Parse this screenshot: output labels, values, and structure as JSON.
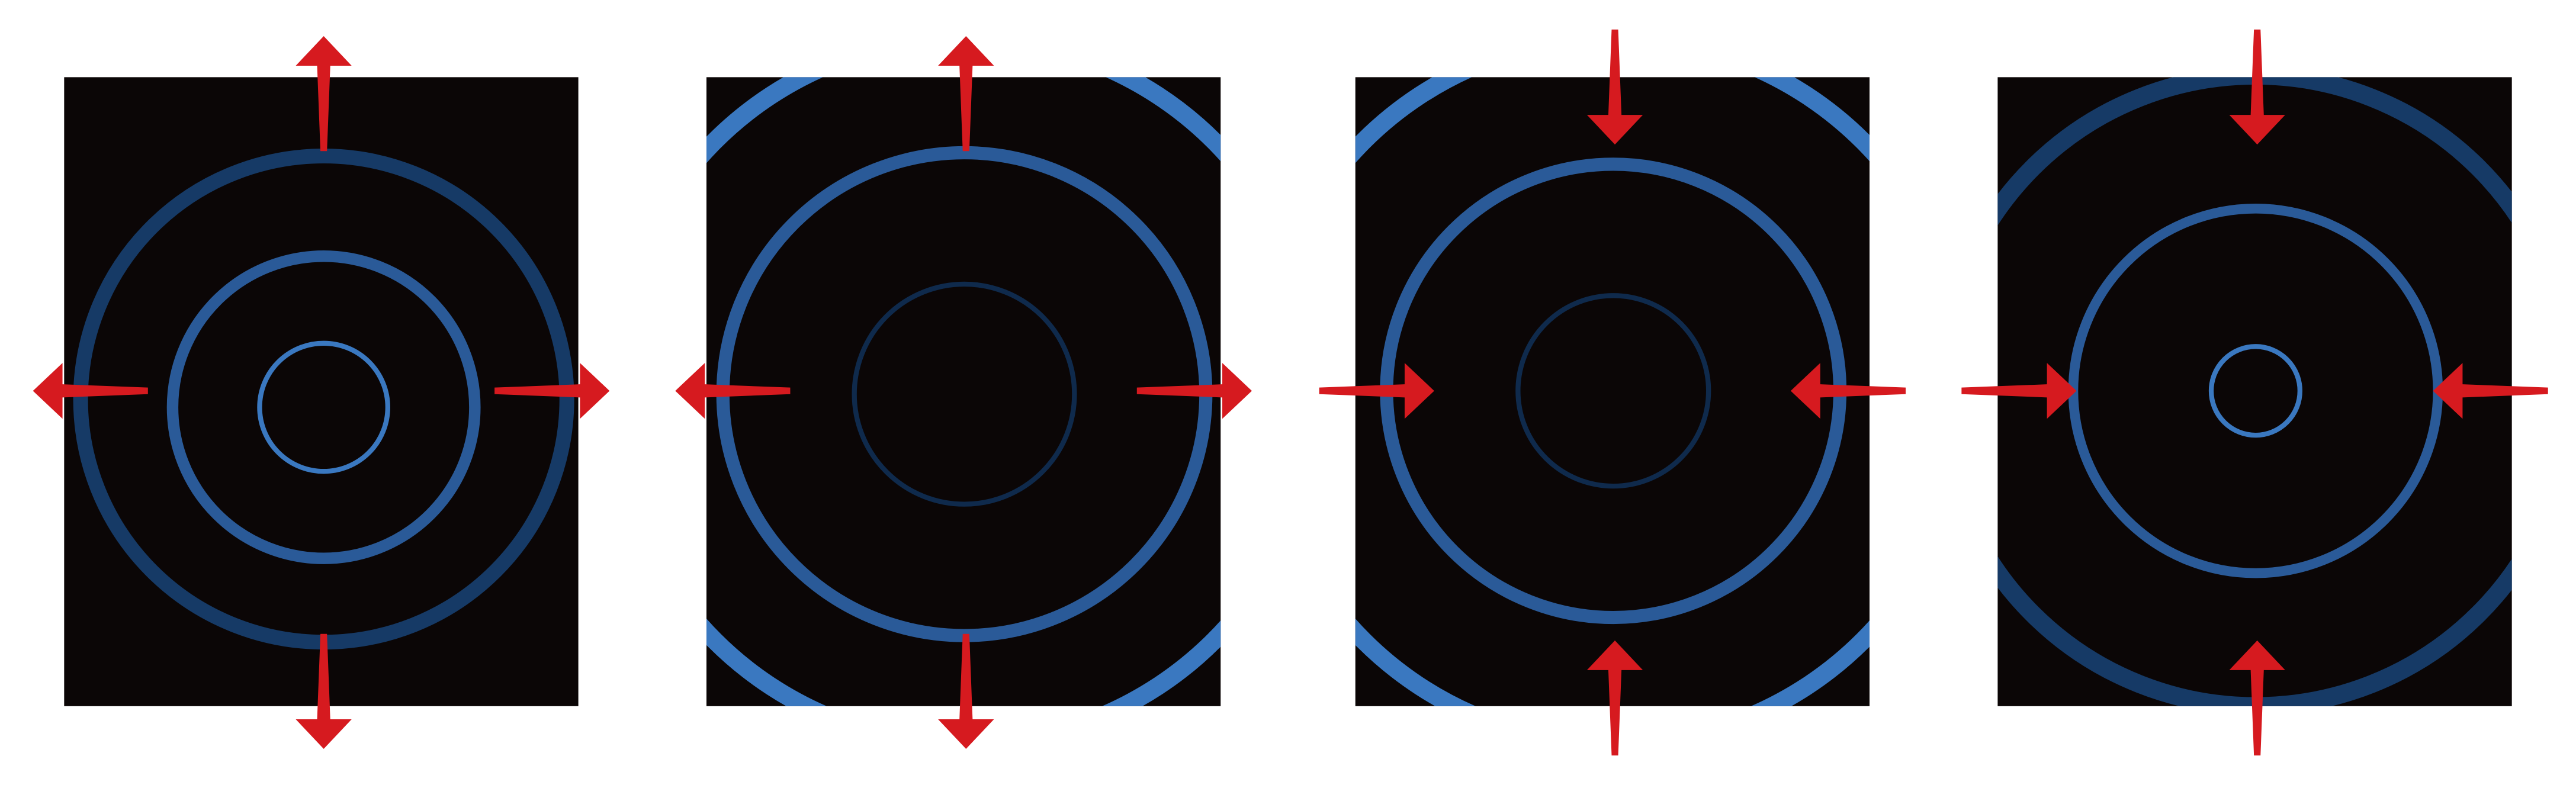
{
  "colors": {
    "background": "#ffffff",
    "panel": "#0b0606",
    "ring_bright": "#3a78c0",
    "ring_mid": "#2a5a98",
    "ring_dim": "#163a66",
    "ring_faint": "#0f2a4c",
    "arrow": "#d61a1f"
  },
  "panels": [
    {
      "name": "panel-1-expanding",
      "arrow_direction": "outward",
      "rings": [
        "ring-outer-dim",
        "ring-middle",
        "ring-inner"
      ]
    },
    {
      "name": "panel-2-expanding",
      "arrow_direction": "outward",
      "rings": [
        "ring-corner-arcs",
        "ring-large",
        "ring-inner-faint"
      ]
    },
    {
      "name": "panel-3-contracting",
      "arrow_direction": "inward",
      "rings": [
        "ring-corner-arcs",
        "ring-large",
        "ring-inner-faint"
      ]
    },
    {
      "name": "panel-4-contracting",
      "arrow_direction": "inward",
      "rings": [
        "ring-outer-dim",
        "ring-middle",
        "ring-inner"
      ]
    }
  ]
}
